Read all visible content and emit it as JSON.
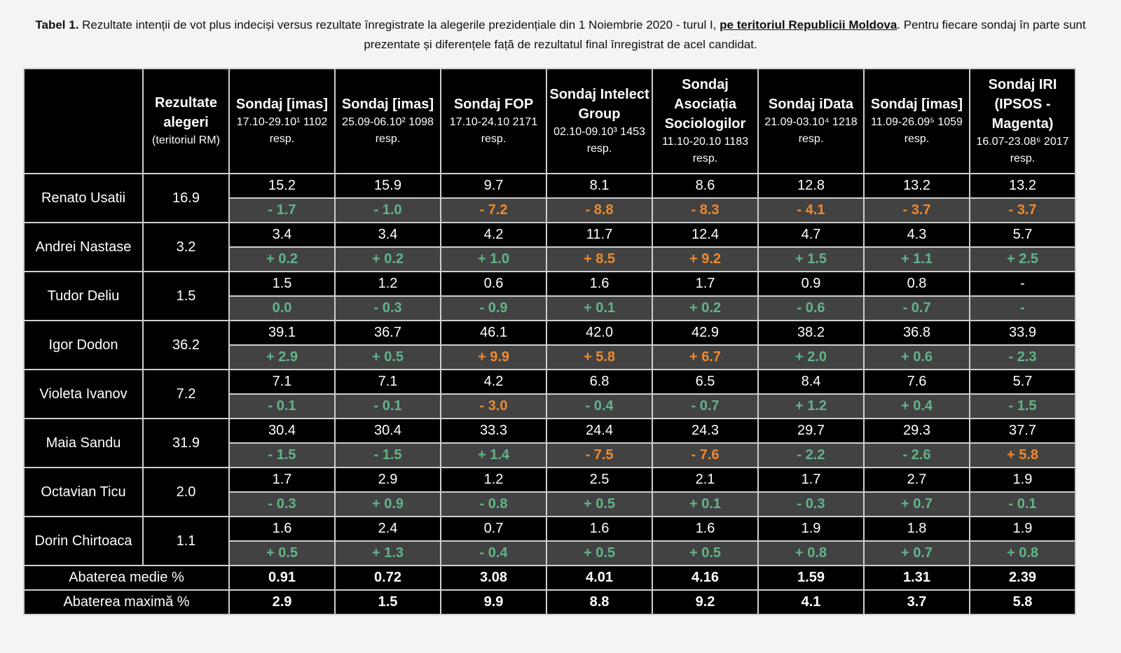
{
  "caption": {
    "bold_lead": "Tabel 1.",
    "text_a": " Rezultate intenții de vot plus indeciși versus rezultate înregistrate la alegerile prezidențiale din 1 Noiembrie 2020 - turul I, ",
    "underlined": "pe teritoriul Republicii Moldova",
    "text_b": ". Pentru fiecare sondaj în parte sunt prezentate și diferențele față de rezultatul final înregistrat de acel candidat."
  },
  "table": {
    "results_header": {
      "title": "Rezultate alegeri",
      "sub": "(teritoriul RM)"
    },
    "polls": [
      {
        "title": "Sondaj [imas]",
        "sub": "17.10-29.10¹ 1102 resp."
      },
      {
        "title": "Sondaj [imas]",
        "sub": "25.09-06.10² 1098 resp."
      },
      {
        "title": "Sondaj FOP",
        "sub": "17.10-24.10 2171 resp."
      },
      {
        "title": "Sondaj Intelect Group",
        "sub": "02.10-09.10³ 1453 resp."
      },
      {
        "title": "Sondaj Asociația Sociologilor",
        "sub": "11.10-20.10 1183 resp."
      },
      {
        "title": "Sondaj iData",
        "sub": "21.09-03.10⁴ 1218 resp."
      },
      {
        "title": "Sondaj [imas]",
        "sub": "11.09-26.09⁵ 1059 resp."
      },
      {
        "title": "Sondaj IRI (IPSOS -Magenta)",
        "sub": "16.07-23.08⁶ 2017 resp."
      }
    ],
    "candidates": [
      {
        "name": "Renato Usatii",
        "result": "16.9",
        "values": [
          "15.2",
          "15.9",
          "9.7",
          "8.1",
          "8.6",
          "12.8",
          "13.2",
          "13.2"
        ],
        "diffs": [
          "- 1.7",
          "- 1.0",
          "- 7.2",
          "- 8.8",
          "- 8.3",
          "- 4.1",
          "- 3.7",
          "- 3.7"
        ],
        "tones": [
          "pos",
          "pos",
          "neg",
          "neg",
          "neg",
          "neg",
          "neg",
          "neg"
        ]
      },
      {
        "name": "Andrei Nastase",
        "result": "3.2",
        "values": [
          "3.4",
          "3.4",
          "4.2",
          "11.7",
          "12.4",
          "4.7",
          "4.3",
          "5.7"
        ],
        "diffs": [
          "+ 0.2",
          "+ 0.2",
          "+ 1.0",
          "+ 8.5",
          "+ 9.2",
          "+ 1.5",
          "+ 1.1",
          "+ 2.5"
        ],
        "tones": [
          "pos",
          "pos",
          "pos",
          "neg",
          "neg",
          "pos",
          "pos",
          "pos"
        ]
      },
      {
        "name": "Tudor Deliu",
        "result": "1.5",
        "values": [
          "1.5",
          "1.2",
          "0.6",
          "1.6",
          "1.7",
          "0.9",
          "0.8",
          "-"
        ],
        "diffs": [
          "0.0",
          "- 0.3",
          "- 0.9",
          "+ 0.1",
          "+ 0.2",
          "- 0.6",
          "- 0.7",
          "-"
        ],
        "tones": [
          "pos",
          "pos",
          "pos",
          "pos",
          "pos",
          "pos",
          "pos",
          "pos"
        ]
      },
      {
        "name": "Igor Dodon",
        "result": "36.2",
        "values": [
          "39.1",
          "36.7",
          "46.1",
          "42.0",
          "42.9",
          "38.2",
          "36.8",
          "33.9"
        ],
        "diffs": [
          "+ 2.9",
          "+ 0.5",
          "+ 9.9",
          "+ 5.8",
          "+ 6.7",
          "+ 2.0",
          "+ 0.6",
          "- 2.3"
        ],
        "tones": [
          "pos",
          "pos",
          "neg",
          "neg",
          "neg",
          "pos",
          "pos",
          "pos"
        ]
      },
      {
        "name": "Violeta Ivanov",
        "result": "7.2",
        "values": [
          "7.1",
          "7.1",
          "4.2",
          "6.8",
          "6.5",
          "8.4",
          "7.6",
          "5.7"
        ],
        "diffs": [
          "- 0.1",
          "- 0.1",
          "- 3.0",
          "- 0.4",
          "- 0.7",
          "+ 1.2",
          "+ 0.4",
          "- 1.5"
        ],
        "tones": [
          "pos",
          "pos",
          "neg",
          "pos",
          "pos",
          "pos",
          "pos",
          "pos"
        ]
      },
      {
        "name": "Maia Sandu",
        "result": "31.9",
        "values": [
          "30.4",
          "30.4",
          "33.3",
          "24.4",
          "24.3",
          "29.7",
          "29.3",
          "37.7"
        ],
        "diffs": [
          "- 1.5",
          "- 1.5",
          "+ 1.4",
          "- 7.5",
          "- 7.6",
          "- 2.2",
          "- 2.6",
          "+ 5.8"
        ],
        "tones": [
          "pos",
          "pos",
          "pos",
          "neg",
          "neg",
          "pos",
          "pos",
          "neg"
        ]
      },
      {
        "name": "Octavian Ticu",
        "result": "2.0",
        "values": [
          "1.7",
          "2.9",
          "1.2",
          "2.5",
          "2.1",
          "1.7",
          "2.7",
          "1.9"
        ],
        "diffs": [
          "- 0.3",
          "+ 0.9",
          "- 0.8",
          "+ 0.5",
          "+ 0.1",
          "- 0.3",
          "+ 0.7",
          "- 0.1"
        ],
        "tones": [
          "pos",
          "pos",
          "pos",
          "pos",
          "pos",
          "pos",
          "pos",
          "pos"
        ]
      },
      {
        "name": "Dorin Chirtoaca",
        "result": "1.1",
        "values": [
          "1.6",
          "2.4",
          "0.7",
          "1.6",
          "1.6",
          "1.9",
          "1.8",
          "1.9"
        ],
        "diffs": [
          "+ 0.5",
          "+ 1.3",
          "- 0.4",
          "+ 0.5",
          "+ 0.5",
          "+ 0.8",
          "+ 0.7",
          "+ 0.8"
        ],
        "tones": [
          "pos",
          "pos",
          "pos",
          "pos",
          "pos",
          "pos",
          "pos",
          "pos"
        ]
      }
    ],
    "summary": [
      {
        "label": "Abaterea medie %",
        "values": [
          "0.91",
          "0.72",
          "3.08",
          "4.01",
          "4.16",
          "1.59",
          "1.31",
          "2.39"
        ]
      },
      {
        "label": "Abaterea maximă %",
        "values": [
          "2.9",
          "1.5",
          "9.9",
          "8.8",
          "9.2",
          "4.1",
          "3.7",
          "5.8"
        ]
      }
    ],
    "colors": {
      "within": "#62b38a",
      "outside": "#ee8a2f",
      "diff_row_bg": "#424242",
      "cell_bg": "#000000"
    }
  }
}
